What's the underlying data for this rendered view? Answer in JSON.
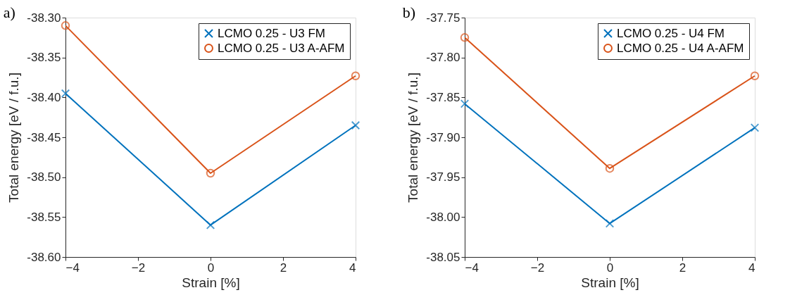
{
  "chart_data": [
    {
      "type": "line",
      "title": "a)",
      "xlabel": "Strain [%]",
      "ylabel": "Total energy [eV / f.u.]",
      "x": [
        -4,
        0,
        4
      ],
      "series": [
        {
          "name": "LCMO 0.25 - U3 FM",
          "color": "#0072bd",
          "marker": "cross",
          "values": [
            -38.395,
            -38.56,
            -38.435
          ]
        },
        {
          "name": "LCMO 0.25 - U3 A-AFM",
          "color": "#d95319",
          "marker": "circle",
          "values": [
            -38.31,
            -38.495,
            -38.373
          ]
        }
      ],
      "xlim": [
        -4,
        4
      ],
      "xticks": [
        -4,
        -2,
        0,
        2,
        4
      ],
      "ylim": [
        -38.6,
        -38.3
      ],
      "yticks": [
        {
          "value": -38.6,
          "label": "-38.60"
        },
        {
          "value": -38.55,
          "label": "-38.55"
        },
        {
          "value": -38.5,
          "label": "-38.50"
        },
        {
          "value": -38.45,
          "label": "-38.45"
        },
        {
          "value": -38.4,
          "label": "-38.40"
        },
        {
          "value": -38.35,
          "label": "-38.35"
        },
        {
          "value": -38.3,
          "label": "-38.30"
        }
      ],
      "grid": false,
      "legend": "top right",
      "line_style": "solid"
    },
    {
      "type": "line",
      "title": "b)",
      "xlabel": "Strain [%]",
      "ylabel": "Total energy [eV / f.u.]",
      "x": [
        -4,
        0,
        4
      ],
      "series": [
        {
          "name": "LCMO 0.25 - U4 FM",
          "color": "#0072bd",
          "marker": "cross",
          "values": [
            -37.858,
            -38.008,
            -37.888
          ]
        },
        {
          "name": "LCMO 0.25 - U4 A-AFM",
          "color": "#d95319",
          "marker": "circle",
          "values": [
            -37.775,
            -37.939,
            -37.823
          ]
        }
      ],
      "xlim": [
        -4,
        4
      ],
      "xticks": [
        -4,
        -2,
        0,
        2,
        4
      ],
      "ylim": [
        -38.05,
        -37.75
      ],
      "yticks": [
        {
          "value": -38.05,
          "label": "-38.05"
        },
        {
          "value": -38.0,
          "label": "-38.00"
        },
        {
          "value": -37.95,
          "label": "-37.95"
        },
        {
          "value": -37.9,
          "label": "-37.90"
        },
        {
          "value": -37.85,
          "label": "-37.85"
        },
        {
          "value": -37.8,
          "label": "-37.80"
        },
        {
          "value": -37.75,
          "label": "-37.75"
        }
      ],
      "grid": false,
      "legend": "top right",
      "line_style": "solid"
    }
  ]
}
